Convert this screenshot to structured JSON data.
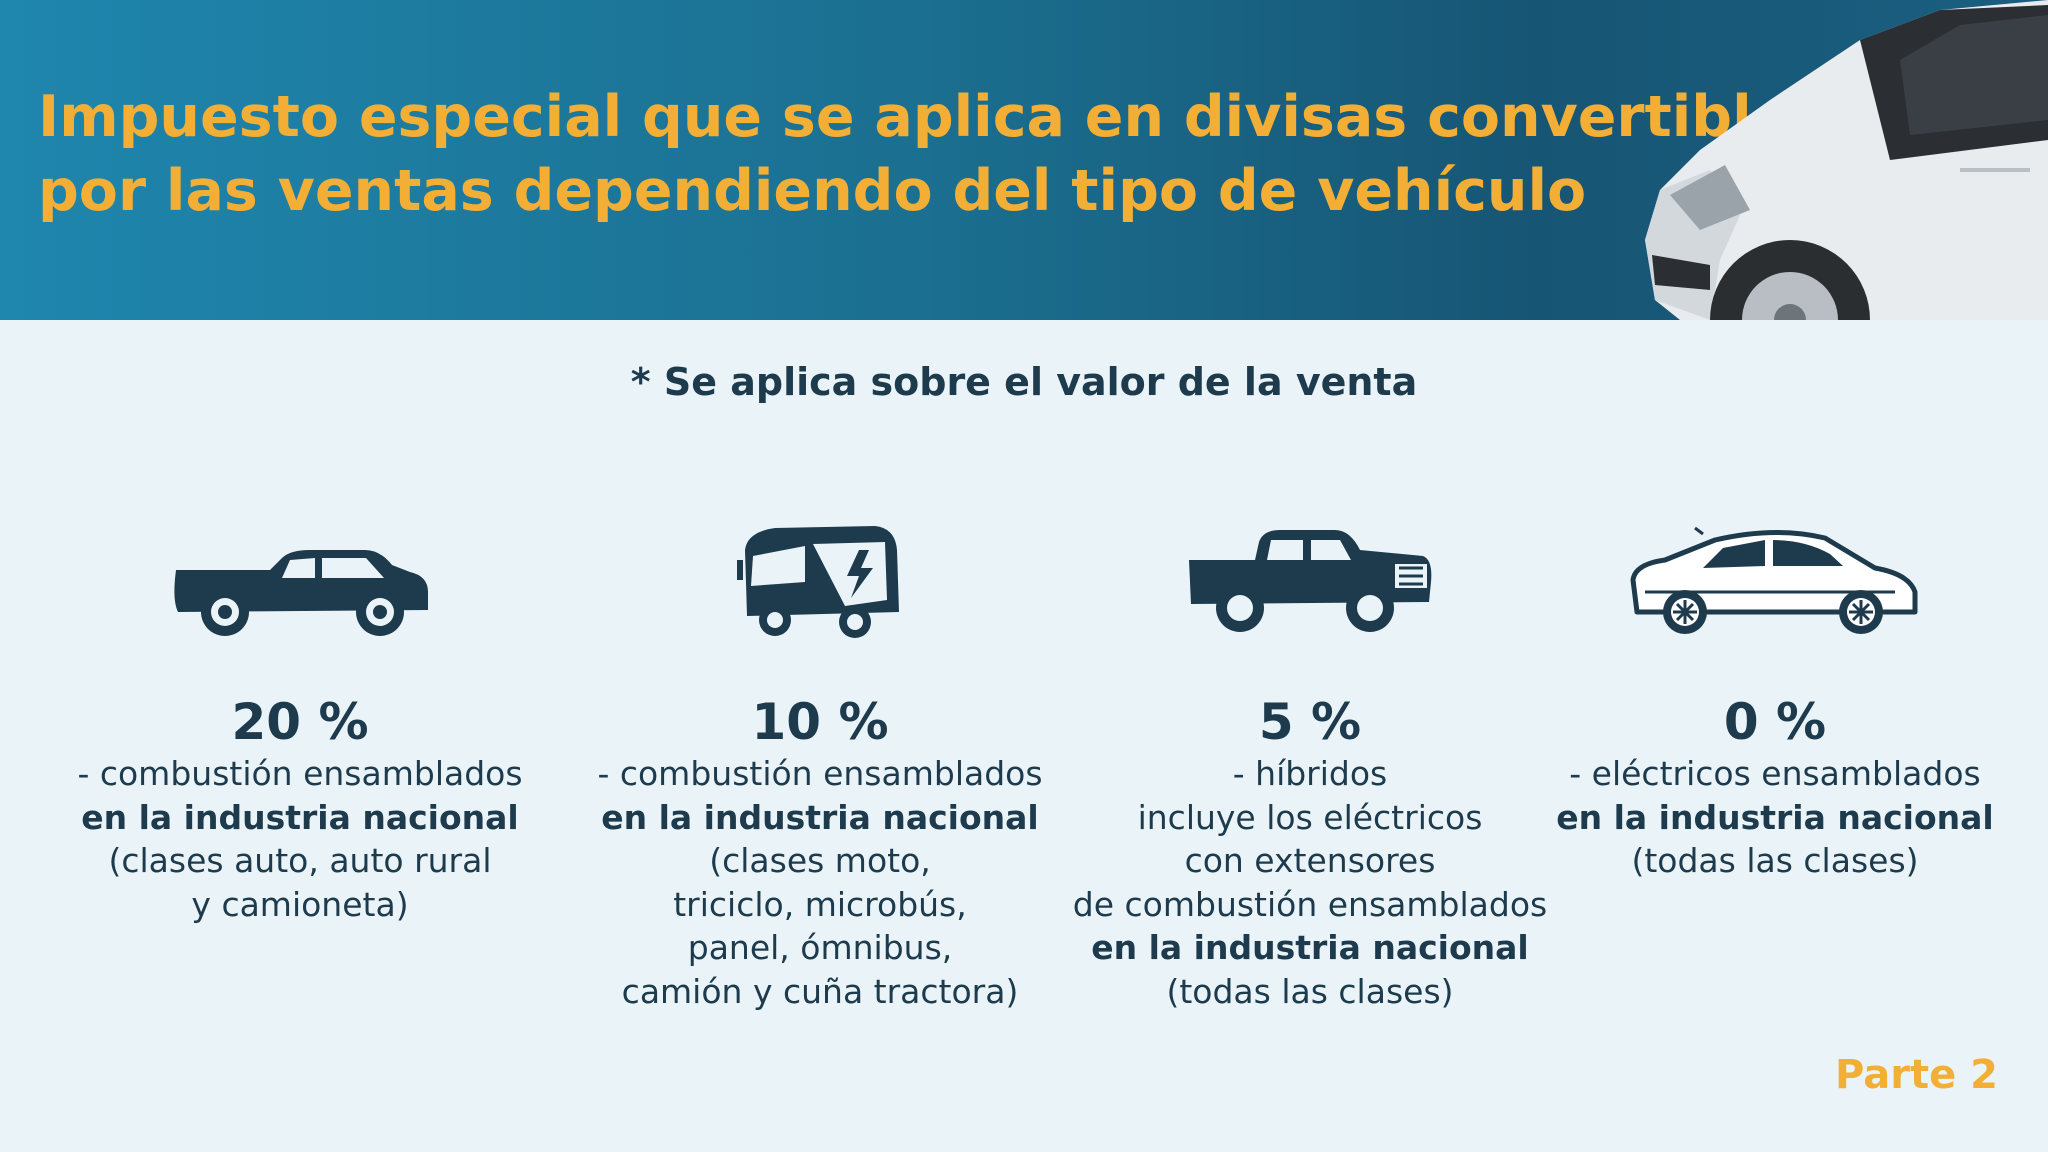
{
  "header": {
    "title_lines": [
      "Impuesto especial que se aplica en divisas convertibles",
      "por las ventas dependiendo del tipo de vehículo"
    ],
    "image": "white-van-photo"
  },
  "note": "* Se aplica sobre el valor de la venta",
  "categories": [
    {
      "icon": "pickup-truck-icon",
      "percent": "20 %",
      "lines": [
        "- combustión ensamblados",
        "en la industria nacional",
        "(clases auto, auto rural",
        "y camioneta)"
      ]
    },
    {
      "icon": "electric-bus-icon",
      "percent": "10 %",
      "lines": [
        "- combustión ensamblados",
        "en la industria nacional",
        "(clases moto,",
        "triciclo, microbús,",
        "panel, ómnibus,",
        "camión y cuña tractora)"
      ]
    },
    {
      "icon": "heavy-pickup-icon",
      "percent": "5 %",
      "lines": [
        "- híbridos",
        "incluye los eléctricos",
        "con extensores",
        "de combustión ensamblados",
        "en la industria nacional",
        "(todas las clases)"
      ]
    },
    {
      "icon": "electric-car-icon",
      "percent": "0 %",
      "lines": [
        "- eléctricos ensamblados",
        "en la industria nacional",
        "(todas las clases)"
      ]
    }
  ],
  "footer": {
    "part_label": "Parte 2"
  },
  "colors": {
    "accent": "#f2ae35",
    "banner": "#1b6f90",
    "text": "#1d3b4d",
    "background": "#eaf4f8"
  }
}
